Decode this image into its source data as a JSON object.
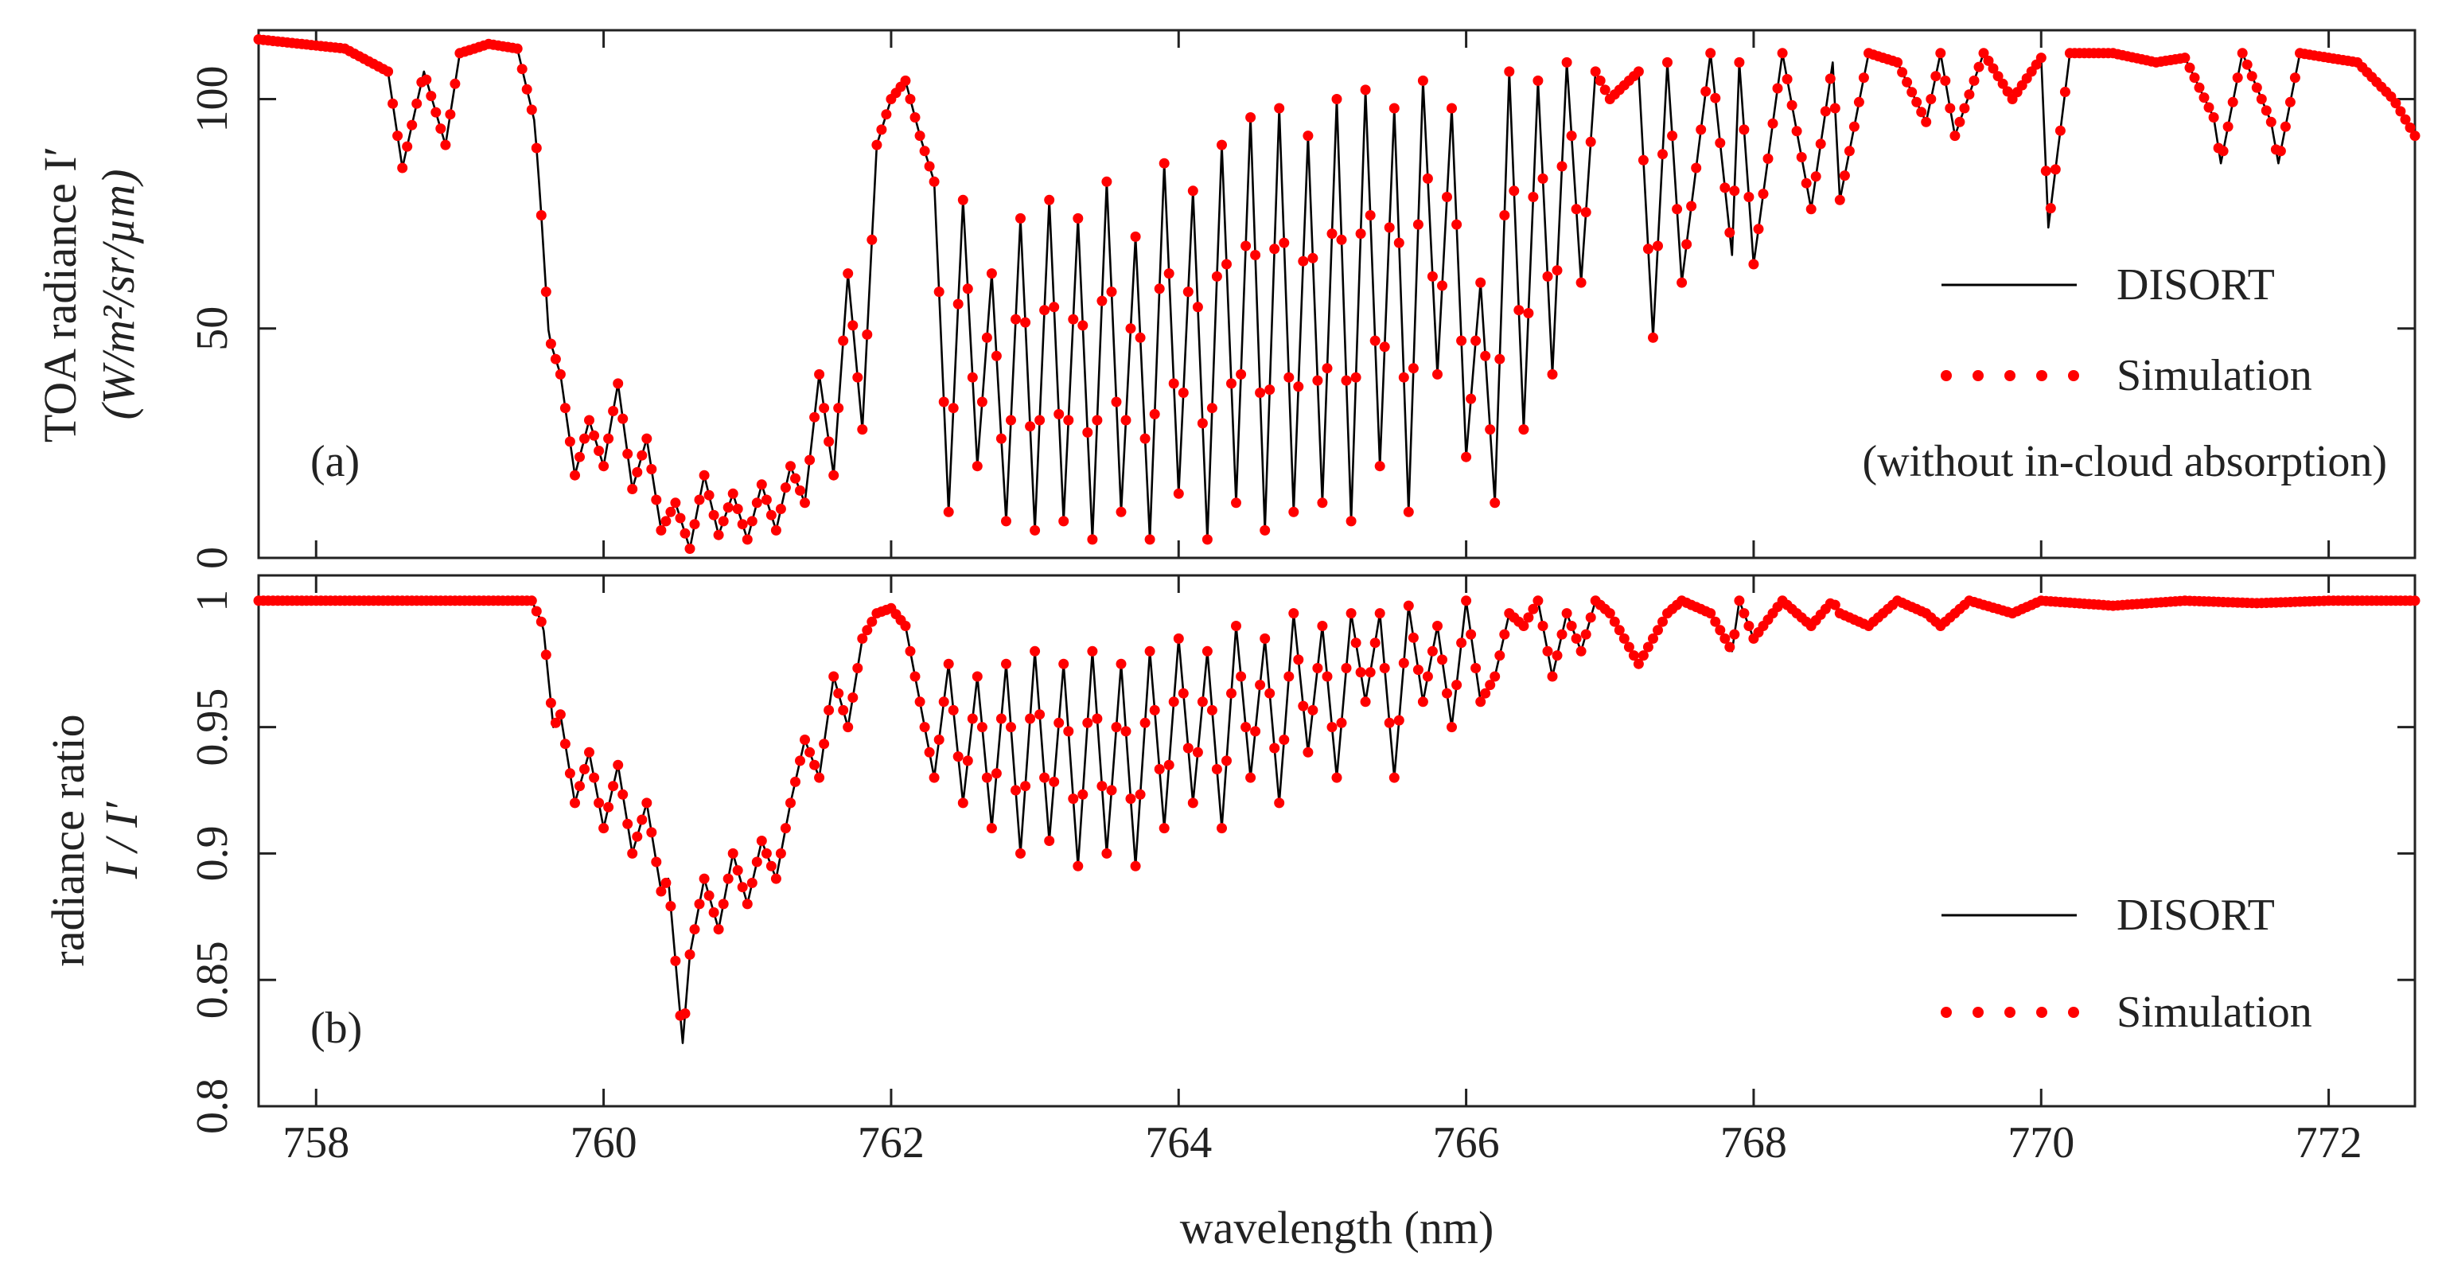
{
  "chart_data": [
    {
      "type": "line",
      "panel_label": "(a)",
      "ylabel": "TOA radiance I′",
      "ylabel_units": "(W/m²/sr/µm)",
      "xlabel": "",
      "annotation": "(without in-cloud absorption)",
      "legend_position": "right",
      "xlim": [
        757.6,
        772.6
      ],
      "ylim": [
        0,
        115
      ],
      "xticks": [
        758,
        760,
        762,
        764,
        766,
        768,
        770,
        772
      ],
      "xtick_labels": [
        "",
        "",
        "",
        "",
        "",
        "",
        "",
        ""
      ],
      "yticks": [
        0,
        50,
        100
      ],
      "ytick_labels": [
        "0",
        "50",
        "100"
      ],
      "series": [
        {
          "name": "DISORT",
          "style": "line",
          "color": "#000000"
        },
        {
          "name": "Simulation",
          "style": "dots",
          "color": "#ff0000"
        }
      ],
      "x": [
        757.6,
        757.9,
        758.2,
        758.5,
        758.6,
        758.75,
        758.9,
        759.0,
        759.2,
        759.4,
        759.52,
        759.56,
        759.62,
        759.7,
        759.8,
        759.9,
        760.0,
        760.1,
        760.2,
        760.3,
        760.4,
        760.5,
        760.6,
        760.7,
        760.8,
        760.9,
        761.0,
        761.1,
        761.2,
        761.3,
        761.4,
        761.5,
        761.6,
        761.7,
        761.8,
        761.9,
        762.0,
        762.1,
        762.2,
        762.3,
        762.4,
        762.5,
        762.6,
        762.7,
        762.8,
        762.9,
        763.0,
        763.1,
        763.2,
        763.3,
        763.4,
        763.5,
        763.6,
        763.7,
        763.8,
        763.9,
        764.0,
        764.1,
        764.2,
        764.3,
        764.4,
        764.5,
        764.6,
        764.7,
        764.8,
        764.9,
        765.0,
        765.1,
        765.2,
        765.3,
        765.4,
        765.5,
        765.6,
        765.7,
        765.8,
        765.9,
        766.0,
        766.1,
        766.2,
        766.3,
        766.4,
        766.5,
        766.6,
        766.7,
        766.8,
        766.9,
        767.0,
        767.2,
        767.3,
        767.4,
        767.5,
        767.7,
        767.85,
        767.9,
        768.0,
        768.2,
        768.4,
        768.55,
        768.6,
        768.8,
        769.0,
        769.2,
        769.3,
        769.4,
        769.6,
        769.8,
        770.0,
        770.05,
        770.2,
        770.5,
        770.8,
        771.0,
        771.2,
        771.25,
        771.4,
        771.6,
        771.65,
        771.8,
        772.0,
        772.2,
        772.45,
        772.6
      ],
      "values": [
        113,
        112,
        111,
        106,
        85,
        106,
        90,
        110,
        112,
        111,
        95,
        78,
        48,
        40,
        18,
        30,
        20,
        38,
        15,
        26,
        6,
        12,
        2,
        18,
        5,
        14,
        4,
        16,
        6,
        20,
        12,
        40,
        18,
        62,
        28,
        90,
        100,
        104,
        92,
        82,
        10,
        78,
        20,
        62,
        8,
        74,
        6,
        78,
        8,
        74,
        4,
        82,
        10,
        70,
        4,
        86,
        14,
        80,
        4,
        90,
        12,
        96,
        6,
        98,
        10,
        92,
        12,
        100,
        8,
        102,
        20,
        98,
        10,
        104,
        40,
        98,
        22,
        60,
        12,
        106,
        28,
        104,
        40,
        108,
        60,
        106,
        100,
        106,
        48,
        108,
        60,
        110,
        66,
        108,
        64,
        110,
        76,
        108,
        78,
        110,
        108,
        95,
        110,
        92,
        110,
        100,
        109,
        72,
        110,
        110,
        108,
        109,
        96,
        86,
        110,
        95,
        86,
        110,
        109,
        108,
        100,
        92
      ]
    },
    {
      "type": "line",
      "panel_label": "(b)",
      "ylabel": "radiance ratio",
      "ylabel_formula": "I / I′",
      "xlabel": "wavelength (nm)",
      "legend_position": "right",
      "xlim": [
        757.6,
        772.6
      ],
      "ylim": [
        0.8,
        1.01
      ],
      "xticks": [
        758,
        760,
        762,
        764,
        766,
        768,
        770,
        772
      ],
      "xtick_labels": [
        "758",
        "760",
        "762",
        "764",
        "766",
        "768",
        "770",
        "772"
      ],
      "yticks": [
        0.8,
        0.85,
        0.9,
        0.95,
        1.0
      ],
      "ytick_labels": [
        "0.8",
        "0.85",
        "0.9",
        "0.95",
        "1"
      ],
      "series": [
        {
          "name": "DISORT",
          "style": "line",
          "color": "#000000"
        },
        {
          "name": "Simulation",
          "style": "dots",
          "color": "#ff0000"
        }
      ],
      "x": [
        757.6,
        758.5,
        759.5,
        759.58,
        759.65,
        759.7,
        759.8,
        759.9,
        760.0,
        760.1,
        760.2,
        760.3,
        760.4,
        760.45,
        760.55,
        760.6,
        760.7,
        760.8,
        760.9,
        761.0,
        761.1,
        761.2,
        761.3,
        761.4,
        761.5,
        761.6,
        761.7,
        761.8,
        761.9,
        762.0,
        762.1,
        762.2,
        762.3,
        762.4,
        762.5,
        762.6,
        762.7,
        762.8,
        762.9,
        763.0,
        763.1,
        763.2,
        763.3,
        763.4,
        763.5,
        763.6,
        763.7,
        763.8,
        763.9,
        764.0,
        764.1,
        764.2,
        764.3,
        764.4,
        764.5,
        764.6,
        764.7,
        764.8,
        764.9,
        765.0,
        765.1,
        765.2,
        765.3,
        765.4,
        765.5,
        765.6,
        765.7,
        765.8,
        765.9,
        766.0,
        766.1,
        766.2,
        766.3,
        766.4,
        766.5,
        766.6,
        766.7,
        766.8,
        766.9,
        767.0,
        767.2,
        767.3,
        767.4,
        767.5,
        767.7,
        767.85,
        767.9,
        768.0,
        768.2,
        768.4,
        768.55,
        768.6,
        768.8,
        769.0,
        769.2,
        769.3,
        769.5,
        769.8,
        770.0,
        770.5,
        771.0,
        771.5,
        772.0,
        772.6
      ],
      "values": [
        1.0,
        1.0,
        1.0,
        0.99,
        0.95,
        0.955,
        0.92,
        0.94,
        0.91,
        0.935,
        0.9,
        0.92,
        0.885,
        0.89,
        0.825,
        0.86,
        0.89,
        0.87,
        0.9,
        0.88,
        0.905,
        0.89,
        0.92,
        0.945,
        0.93,
        0.97,
        0.95,
        0.985,
        0.995,
        0.997,
        0.99,
        0.96,
        0.93,
        0.975,
        0.92,
        0.97,
        0.91,
        0.975,
        0.9,
        0.98,
        0.905,
        0.975,
        0.895,
        0.98,
        0.9,
        0.975,
        0.895,
        0.98,
        0.91,
        0.985,
        0.92,
        0.98,
        0.91,
        0.99,
        0.93,
        0.985,
        0.92,
        0.995,
        0.94,
        0.99,
        0.93,
        0.995,
        0.96,
        0.995,
        0.93,
        0.998,
        0.96,
        0.99,
        0.95,
        1.0,
        0.96,
        0.97,
        0.995,
        0.99,
        1.0,
        0.97,
        0.995,
        0.98,
        1.0,
        0.995,
        0.975,
        0.985,
        0.995,
        1.0,
        0.995,
        0.98,
        1.0,
        0.985,
        1.0,
        0.99,
        1.0,
        0.995,
        0.99,
        1.0,
        0.995,
        0.99,
        1.0,
        0.995,
        1.0,
        0.998,
        1.0,
        0.999,
        1.0,
        1.0
      ]
    }
  ],
  "legend": {
    "line_label": "DISORT",
    "dots_label": "Simulation"
  },
  "colors": {
    "line": "#000000",
    "dots": "#ff0000",
    "axes": "#222222"
  }
}
